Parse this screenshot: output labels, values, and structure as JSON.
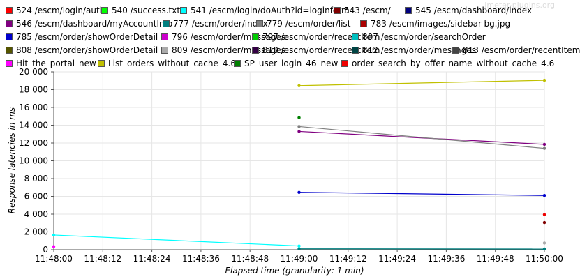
{
  "watermark": "jmeter-plugins.org",
  "chart_data": {
    "type": "line",
    "xlabel": "Elapsed time (granularity: 1 min)",
    "ylabel": "Response latencies in ms",
    "ylim": [
      0,
      20000
    ],
    "y_ticks": [
      0,
      2000,
      4000,
      6000,
      8000,
      10000,
      12000,
      14000,
      16000,
      18000,
      20000
    ],
    "y_tick_labels": [
      "0",
      "2 000",
      "4 000",
      "6 000",
      "8 000",
      "10 000",
      "12 000",
      "14 000",
      "16 000",
      "18 000",
      "20 000"
    ],
    "x_tick_labels": [
      "11:48:00",
      "11:48:12",
      "11:48:24",
      "11:48:36",
      "11:48:48",
      "11:49:00",
      "11:49:12",
      "11:49:24",
      "11:49:36",
      "11:49:48",
      "11:50:00"
    ],
    "x_categories": [
      "11:48:00",
      "11:49:00",
      "11:50:00"
    ],
    "grid": true,
    "legend_position": "top",
    "series": [
      {
        "name": "524 /escm/login/auth",
        "color": "#ff0000",
        "values": [
          null,
          null,
          null
        ]
      },
      {
        "name": "540 /success.txt",
        "color": "#00ff00",
        "values": [
          null,
          null,
          null
        ]
      },
      {
        "name": "541 /escm/login/doAuth?id=loginform",
        "color": "#00ffff",
        "values": [
          1650,
          420,
          null
        ]
      },
      {
        "name": "543 /escm/",
        "color": "#800000",
        "values": [
          null,
          null,
          3050
        ]
      },
      {
        "name": "545 /escm/dashboard/index",
        "color": "#000080",
        "values": [
          null,
          null,
          null
        ]
      },
      {
        "name": "546 /escm/dashboard/myAccountInfo",
        "color": "#800080",
        "values": [
          null,
          13300,
          11850
        ]
      },
      {
        "name": "777 /escm/order/index",
        "color": "#008080",
        "values": [
          null,
          100,
          80
        ]
      },
      {
        "name": "779 /escm/order/list",
        "color": "#808080",
        "values": [
          null,
          13850,
          11400
        ]
      },
      {
        "name": "783 /escm/images/sidebar-bg.jpg",
        "color": "#aa0000",
        "values": [
          null,
          null,
          null
        ]
      },
      {
        "name": "785 /escm/order/showOrderDetail",
        "color": "#0000cc",
        "values": [
          null,
          6450,
          6100
        ]
      },
      {
        "name": "796 /escm/order/messages",
        "color": "#cc00cc",
        "values": [
          null,
          null,
          null
        ]
      },
      {
        "name": "797 /escm/order/recentItem",
        "color": "#00cc00",
        "values": [
          null,
          null,
          null
        ]
      },
      {
        "name": "807 /escm/order/searchOrder",
        "color": "#00c0c0",
        "values": [
          null,
          null,
          null
        ]
      },
      {
        "name": "808 /escm/order/showOrderDetail",
        "color": "#555500",
        "values": [
          null,
          null,
          null
        ]
      },
      {
        "name": "809 /escm/order/messages",
        "color": "#aaaaaa",
        "values": [
          null,
          null,
          750
        ]
      },
      {
        "name": "810 /escm/order/recentItem",
        "color": "#330044",
        "values": [
          null,
          null,
          null
        ]
      },
      {
        "name": "812 /escm/order/messages",
        "color": "#004444",
        "values": [
          null,
          null,
          null
        ]
      },
      {
        "name": "813 /escm/order/recentItem",
        "color": "#444444",
        "values": [
          null,
          null,
          null
        ]
      },
      {
        "name": "Hit_the_portal_new",
        "color": "#ff00ff",
        "values": [
          350,
          null,
          null
        ]
      },
      {
        "name": "List_orders_without_cache_4.6",
        "color": "#c0c000",
        "values": [
          null,
          18450,
          19050
        ]
      },
      {
        "name": "SP_user_login_46_new",
        "color": "#008000",
        "values": [
          null,
          14850,
          null
        ]
      },
      {
        "name": "order_search_by_offer_name_without_cache_4.6",
        "color": "#ee0000",
        "values": [
          null,
          null,
          3950
        ]
      }
    ]
  }
}
